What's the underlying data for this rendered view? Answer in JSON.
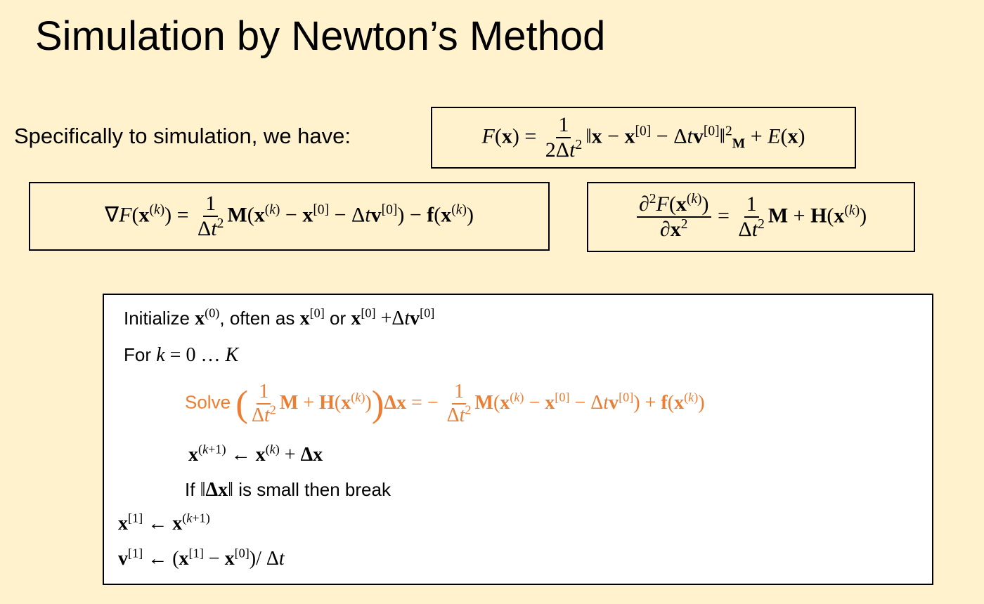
{
  "slide": {
    "title": "Simulation by Newton’s Method",
    "intro": "Specifically to simulation, we have:",
    "objective_eq": "\\i{F}(\\b{x}) = \\f{1}{2Δ\\i{t}^{2}}‖\\b{x} − \\b{x}^{[0]} − Δ\\i{t}\\b{v}^{[0]}‖^{2}_{\\b{M}} + \\i{E}(\\b{x})",
    "gradient_eq": "∇\\i{F}(\\b{x}^{(\\i{k})}) = \\f{1}{Δ\\i{t}^{2}}\\b{M}(\\b{x}^{(\\i{k})} − \\b{x}^{[0]} − Δ\\i{t}\\b{v}^{[0]}) − \\b{f}(\\b{x}^{(\\i{k})})",
    "hessian_eq": "\\f{∂^{2}\\i{F}(\\b{x}^{(\\i{k})})}{∂\\b{x}^{2}} = \\f{1}{Δ\\i{t}^{2}}\\b{M} + \\b{H}(\\b{x}^{(\\i{k})})"
  },
  "algorithm": {
    "lines": [
      "Initialize \\m{\\b{x}^{(0)}}, often as \\m{\\b{x}^{[0]}} or \\m{\\b{x}^{[0]} +Δ\\i{t}\\b{v}^{[0]}}",
      "For \\m{\\i{k} = 0 … \\i{K}}",
      "Solve  \\m{\\L(\\f{1}{Δ\\i{t}^{2}}\\b{M} + \\b{H}(\\b{x}^{(\\i{k})})\\R)\\b{Δx} = − \\f{1}{Δ\\i{t}^{2}}\\b{M}(\\b{x}^{(\\i{k})} − \\b{x}^{[0]} − Δ\\i{t}\\b{v}^{[0]}) + \\b{f}(\\b{x}^{(\\i{k})})}",
      "\\m{\\b{x}^{(\\i{k}+1)} ← \\b{x}^{(\\i{k})} + \\b{Δx}}",
      "If \\m{‖\\b{Δx}‖} is small     then break",
      "\\m{\\b{x}^{[1]} ← \\b{x}^{(\\i{k}+1)}}",
      "\\m{\\b{v}^{[1]} ← (\\b{x}^{[1]} − \\b{x}^{[0]})/ Δ\\i{t}}"
    ],
    "highlight_color": "#ED7D31"
  },
  "colors": {
    "background": "#FFF2CC",
    "box_border": "#000000",
    "algorithm_background": "#FFFFFF"
  }
}
